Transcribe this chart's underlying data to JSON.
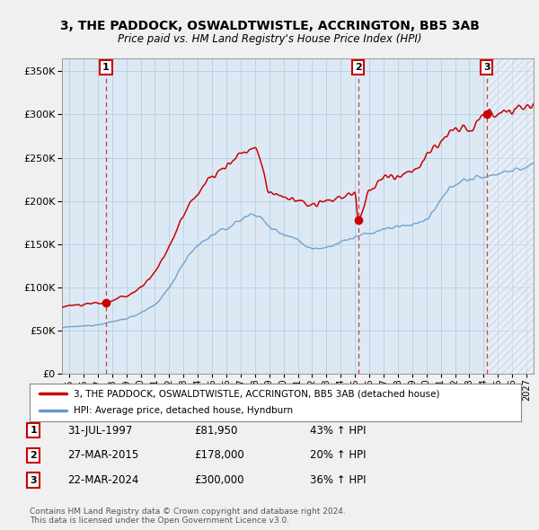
{
  "title": "3, THE PADDOCK, OSWALDTWISTLE, ACCRINGTON, BB5 3AB",
  "subtitle": "Price paid vs. HM Land Registry's House Price Index (HPI)",
  "yticks": [
    0,
    50000,
    100000,
    150000,
    200000,
    250000,
    300000,
    350000
  ],
  "xlim_start": 1994.5,
  "xlim_end": 2027.5,
  "ylim": [
    0,
    365000
  ],
  "bg_color": "#f0f0f0",
  "plot_bg_color": "#dce9f5",
  "red_line_color": "#cc0000",
  "blue_line_color": "#6699cc",
  "sale_points": [
    {
      "year_decimal": 1997.58,
      "price": 81950,
      "label": "1"
    },
    {
      "year_decimal": 2015.23,
      "price": 178000,
      "label": "2"
    },
    {
      "year_decimal": 2024.22,
      "price": 300000,
      "label": "3"
    }
  ],
  "legend_line1": "3, THE PADDOCK, OSWALDTWISTLE, ACCRINGTON, BB5 3AB (detached house)",
  "legend_line2": "HPI: Average price, detached house, Hyndburn",
  "table_rows": [
    {
      "num": "1",
      "date": "31-JUL-1997",
      "price": "£81,950",
      "change": "43% ↑ HPI"
    },
    {
      "num": "2",
      "date": "27-MAR-2015",
      "price": "£178,000",
      "change": "20% ↑ HPI"
    },
    {
      "num": "3",
      "date": "22-MAR-2024",
      "price": "£300,000",
      "change": "36% ↑ HPI"
    }
  ],
  "footnote1": "Contains HM Land Registry data © Crown copyright and database right 2024.",
  "footnote2": "This data is licensed under the Open Government Licence v3.0."
}
